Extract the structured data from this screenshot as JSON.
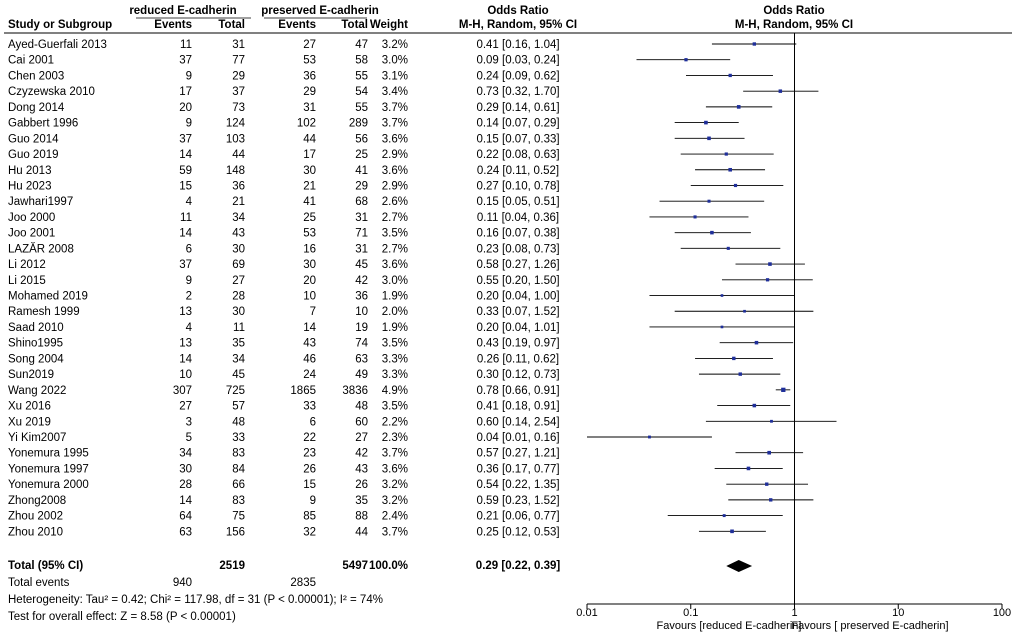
{
  "header": {
    "group1": "reduced E-cadherin",
    "group2": "preserved E-cadherin",
    "study_col": "Study or Subgroup",
    "events1": "Events",
    "total1": "Total",
    "events2": "Events",
    "total2": "Total",
    "weight": "Weight",
    "or_title": "Odds Ratio",
    "or_method": "M-H, Random, 95% CI",
    "plot_title": "Odds Ratio",
    "plot_method": "M-H, Random, 95% CI"
  },
  "chart_data": {
    "type": "forest",
    "xscale": "log",
    "xlim": [
      0.01,
      100
    ],
    "ticks": [
      0.01,
      0.1,
      1,
      10,
      100
    ],
    "tick_labels": [
      "0.01",
      "0.1",
      "1",
      "10",
      "100"
    ],
    "favours_left": "Favours [reduced E-cadherin]",
    "favours_right": "Favours [ preserved E-cadherin]",
    "studies": [
      {
        "name": "Ayed-Guerfali 2013",
        "e1": "11",
        "t1": "31",
        "e2": "27",
        "t2": "47",
        "weight": "3.2%",
        "ci_text": "0.41 [0.16, 1.04]",
        "or": 0.41,
        "lo": 0.16,
        "hi": 1.04
      },
      {
        "name": "Cai 2001",
        "e1": "37",
        "t1": "77",
        "e2": "53",
        "t2": "58",
        "weight": "3.0%",
        "ci_text": "0.09 [0.03, 0.24]",
        "or": 0.09,
        "lo": 0.03,
        "hi": 0.24
      },
      {
        "name": "Chen 2003",
        "e1": "9",
        "t1": "29",
        "e2": "36",
        "t2": "55",
        "weight": "3.1%",
        "ci_text": "0.24 [0.09, 0.62]",
        "or": 0.24,
        "lo": 0.09,
        "hi": 0.62
      },
      {
        "name": "Czyzewska 2010",
        "e1": "17",
        "t1": "37",
        "e2": "29",
        "t2": "54",
        "weight": "3.4%",
        "ci_text": "0.73 [0.32, 1.70]",
        "or": 0.73,
        "lo": 0.32,
        "hi": 1.7
      },
      {
        "name": "Dong 2014",
        "e1": "20",
        "t1": "73",
        "e2": "31",
        "t2": "55",
        "weight": "3.7%",
        "ci_text": "0.29 [0.14, 0.61]",
        "or": 0.29,
        "lo": 0.14,
        "hi": 0.61
      },
      {
        "name": "Gabbert 1996",
        "e1": "9",
        "t1": "124",
        "e2": "102",
        "t2": "289",
        "weight": "3.7%",
        "ci_text": "0.14 [0.07, 0.29]",
        "or": 0.14,
        "lo": 0.07,
        "hi": 0.29
      },
      {
        "name": "Guo 2014",
        "e1": "37",
        "t1": "103",
        "e2": "44",
        "t2": "56",
        "weight": "3.6%",
        "ci_text": "0.15 [0.07, 0.33]",
        "or": 0.15,
        "lo": 0.07,
        "hi": 0.33
      },
      {
        "name": "Guo 2019",
        "e1": "14",
        "t1": "44",
        "e2": "17",
        "t2": "25",
        "weight": "2.9%",
        "ci_text": "0.22 [0.08, 0.63]",
        "or": 0.22,
        "lo": 0.08,
        "hi": 0.63
      },
      {
        "name": "Hu 2013",
        "e1": "59",
        "t1": "148",
        "e2": "30",
        "t2": "41",
        "weight": "3.6%",
        "ci_text": "0.24 [0.11, 0.52]",
        "or": 0.24,
        "lo": 0.11,
        "hi": 0.52
      },
      {
        "name": "Hu 2023",
        "e1": "15",
        "t1": "36",
        "e2": "21",
        "t2": "29",
        "weight": "2.9%",
        "ci_text": "0.27 [0.10, 0.78]",
        "or": 0.27,
        "lo": 0.1,
        "hi": 0.78
      },
      {
        "name": "Jawhari1997",
        "e1": "4",
        "t1": "21",
        "e2": "41",
        "t2": "68",
        "weight": "2.6%",
        "ci_text": "0.15 [0.05, 0.51]",
        "or": 0.15,
        "lo": 0.05,
        "hi": 0.51
      },
      {
        "name": "Joo 2000",
        "e1": "11",
        "t1": "34",
        "e2": "25",
        "t2": "31",
        "weight": "2.7%",
        "ci_text": "0.11 [0.04, 0.36]",
        "or": 0.11,
        "lo": 0.04,
        "hi": 0.36
      },
      {
        "name": "Joo 2001",
        "e1": "14",
        "t1": "43",
        "e2": "53",
        "t2": "71",
        "weight": "3.5%",
        "ci_text": "0.16 [0.07, 0.38]",
        "or": 0.16,
        "lo": 0.07,
        "hi": 0.38
      },
      {
        "name": "LAZĂR 2008",
        "e1": "6",
        "t1": "30",
        "e2": "16",
        "t2": "31",
        "weight": "2.7%",
        "ci_text": "0.23 [0.08, 0.73]",
        "or": 0.23,
        "lo": 0.08,
        "hi": 0.73
      },
      {
        "name": "Li 2012",
        "e1": "37",
        "t1": "69",
        "e2": "30",
        "t2": "45",
        "weight": "3.6%",
        "ci_text": "0.58 [0.27, 1.26]",
        "or": 0.58,
        "lo": 0.27,
        "hi": 1.26
      },
      {
        "name": "Li 2015",
        "e1": "9",
        "t1": "27",
        "e2": "20",
        "t2": "42",
        "weight": "3.0%",
        "ci_text": "0.55 [0.20, 1.50]",
        "or": 0.55,
        "lo": 0.2,
        "hi": 1.5
      },
      {
        "name": "Mohamed 2019",
        "e1": "2",
        "t1": "28",
        "e2": "10",
        "t2": "36",
        "weight": "1.9%",
        "ci_text": "0.20 [0.04, 1.00]",
        "or": 0.2,
        "lo": 0.04,
        "hi": 1.0
      },
      {
        "name": "Ramesh 1999",
        "e1": "13",
        "t1": "30",
        "e2": "7",
        "t2": "10",
        "weight": "2.0%",
        "ci_text": "0.33 [0.07, 1.52]",
        "or": 0.33,
        "lo": 0.07,
        "hi": 1.52
      },
      {
        "name": "Saad 2010",
        "e1": "4",
        "t1": "11",
        "e2": "14",
        "t2": "19",
        "weight": "1.9%",
        "ci_text": "0.20 [0.04, 1.01]",
        "or": 0.2,
        "lo": 0.04,
        "hi": 1.01
      },
      {
        "name": "Shino1995",
        "e1": "13",
        "t1": "35",
        "e2": "43",
        "t2": "74",
        "weight": "3.5%",
        "ci_text": "0.43 [0.19, 0.97]",
        "or": 0.43,
        "lo": 0.19,
        "hi": 0.97
      },
      {
        "name": "Song 2004",
        "e1": "14",
        "t1": "34",
        "e2": "46",
        "t2": "63",
        "weight": "3.3%",
        "ci_text": "0.26 [0.11, 0.62]",
        "or": 0.26,
        "lo": 0.11,
        "hi": 0.62
      },
      {
        "name": "Sun2019",
        "e1": "10",
        "t1": "45",
        "e2": "24",
        "t2": "49",
        "weight": "3.3%",
        "ci_text": "0.30 [0.12, 0.73]",
        "or": 0.3,
        "lo": 0.12,
        "hi": 0.73
      },
      {
        "name": "Wang 2022",
        "e1": "307",
        "t1": "725",
        "e2": "1865",
        "t2": "3836",
        "weight": "4.9%",
        "ci_text": "0.78 [0.66, 0.91]",
        "or": 0.78,
        "lo": 0.66,
        "hi": 0.91
      },
      {
        "name": "Xu 2016",
        "e1": "27",
        "t1": "57",
        "e2": "33",
        "t2": "48",
        "weight": "3.5%",
        "ci_text": "0.41 [0.18, 0.91]",
        "or": 0.41,
        "lo": 0.18,
        "hi": 0.91
      },
      {
        "name": "Xu 2019",
        "e1": "3",
        "t1": "48",
        "e2": "6",
        "t2": "60",
        "weight": "2.2%",
        "ci_text": "0.60 [0.14, 2.54]",
        "or": 0.6,
        "lo": 0.14,
        "hi": 2.54
      },
      {
        "name": "Yi Kim2007",
        "e1": "5",
        "t1": "33",
        "e2": "22",
        "t2": "27",
        "weight": "2.3%",
        "ci_text": "0.04 [0.01, 0.16]",
        "or": 0.04,
        "lo": 0.01,
        "hi": 0.16
      },
      {
        "name": "Yonemura 1995",
        "e1": "34",
        "t1": "83",
        "e2": "23",
        "t2": "42",
        "weight": "3.7%",
        "ci_text": "0.57 [0.27, 1.21]",
        "or": 0.57,
        "lo": 0.27,
        "hi": 1.21
      },
      {
        "name": "Yonemura 1997",
        "e1": "30",
        "t1": "84",
        "e2": "26",
        "t2": "43",
        "weight": "3.6%",
        "ci_text": "0.36 [0.17, 0.77]",
        "or": 0.36,
        "lo": 0.17,
        "hi": 0.77
      },
      {
        "name": "Yonemura 2000",
        "e1": "28",
        "t1": "66",
        "e2": "15",
        "t2": "26",
        "weight": "3.2%",
        "ci_text": "0.54 [0.22, 1.35]",
        "or": 0.54,
        "lo": 0.22,
        "hi": 1.35
      },
      {
        "name": "Zhong2008",
        "e1": "14",
        "t1": "83",
        "e2": "9",
        "t2": "35",
        "weight": "3.2%",
        "ci_text": "0.59 [0.23, 1.52]",
        "or": 0.59,
        "lo": 0.23,
        "hi": 1.52
      },
      {
        "name": "Zhou 2002",
        "e1": "64",
        "t1": "75",
        "e2": "85",
        "t2": "88",
        "weight": "2.4%",
        "ci_text": "0.21 [0.06, 0.77]",
        "or": 0.21,
        "lo": 0.06,
        "hi": 0.77
      },
      {
        "name": "Zhou 2010",
        "e1": "63",
        "t1": "156",
        "e2": "32",
        "t2": "44",
        "weight": "3.7%",
        "ci_text": "0.25 [0.12, 0.53]",
        "or": 0.25,
        "lo": 0.12,
        "hi": 0.53
      }
    ],
    "total": {
      "name": "Total (95% CI)",
      "t1": "2519",
      "t2": "5497",
      "weight": "100.0%",
      "ci_text": "0.29 [0.22, 0.39]",
      "or": 0.29,
      "lo": 0.22,
      "hi": 0.39
    },
    "events_row": {
      "label": "Total events",
      "e1": "940",
      "e2": "2835"
    },
    "heterogeneity": "Heterogeneity: Tau² = 0.42; Chi² = 117.98, df = 31 (P < 0.00001); I² = 74%",
    "overall_effect": "Test for overall effect: Z = 8.58 (P < 0.00001)"
  }
}
